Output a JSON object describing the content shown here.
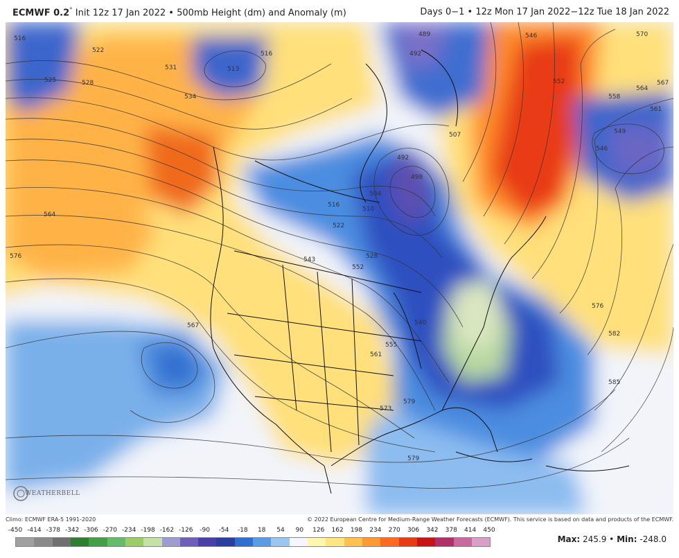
{
  "header": {
    "model": "ECMWF 0.2",
    "degree_mark": "°",
    "init": "Init 12z 17 Jan 2022",
    "separator": "•",
    "product": "500mb Height (dm) and Anomaly (m)",
    "days": "Days 0−1",
    "valid": "12z Mon 17 Jan 2022−12z Tue 18 Jan 2022"
  },
  "footer": {
    "climo": "Climo: ECMWF ERA-5 1991-2020",
    "copyright": "© 2022 European Centre for Medium-Range Weather Forecasts (ECMWF). This service is based on data and products of the ECMWF.",
    "max_label": "Max:",
    "max_value": "245.9",
    "min_label": "Min:",
    "min_value": "-248.0"
  },
  "logo": {
    "text": "WEATHERBELL"
  },
  "legend": {
    "labels": [
      "-450",
      "-414",
      "-378",
      "-342",
      "-306",
      "-270",
      "-234",
      "-198",
      "-162",
      "-126",
      "-90",
      "-54",
      "-18",
      "18",
      "54",
      "90",
      "126",
      "162",
      "198",
      "234",
      "270",
      "306",
      "342",
      "378",
      "414",
      "450"
    ],
    "colors": [
      "#a0a0a0",
      "#8a8a8a",
      "#707070",
      "#2e7d32",
      "#43a047",
      "#66bb6a",
      "#9ccc65",
      "#c5e1a5",
      "#9e9bd0",
      "#6f5fb8",
      "#4a3fa8",
      "#2b3fa0",
      "#2e6fd0",
      "#5a9be6",
      "#9cc6f0",
      "#f4f6fb",
      "#fff7b0",
      "#ffe680",
      "#ffc24d",
      "#ff9933",
      "#ff6a1f",
      "#e83a14",
      "#c81414",
      "#b0306a",
      "#c86aa0",
      "#d8a0c8"
    ]
  },
  "contour_labels": [
    "516",
    "513",
    "516",
    "522",
    "525",
    "528",
    "531",
    "534",
    "564",
    "576",
    "567",
    "546",
    "552",
    "558",
    "564",
    "567",
    "561",
    "549",
    "546",
    "540",
    "528",
    "522",
    "516",
    "510",
    "504",
    "492",
    "498",
    "489",
    "492",
    "507",
    "543",
    "552",
    "555",
    "561",
    "573",
    "579",
    "579",
    "582",
    "585",
    "576",
    "570"
  ]
}
